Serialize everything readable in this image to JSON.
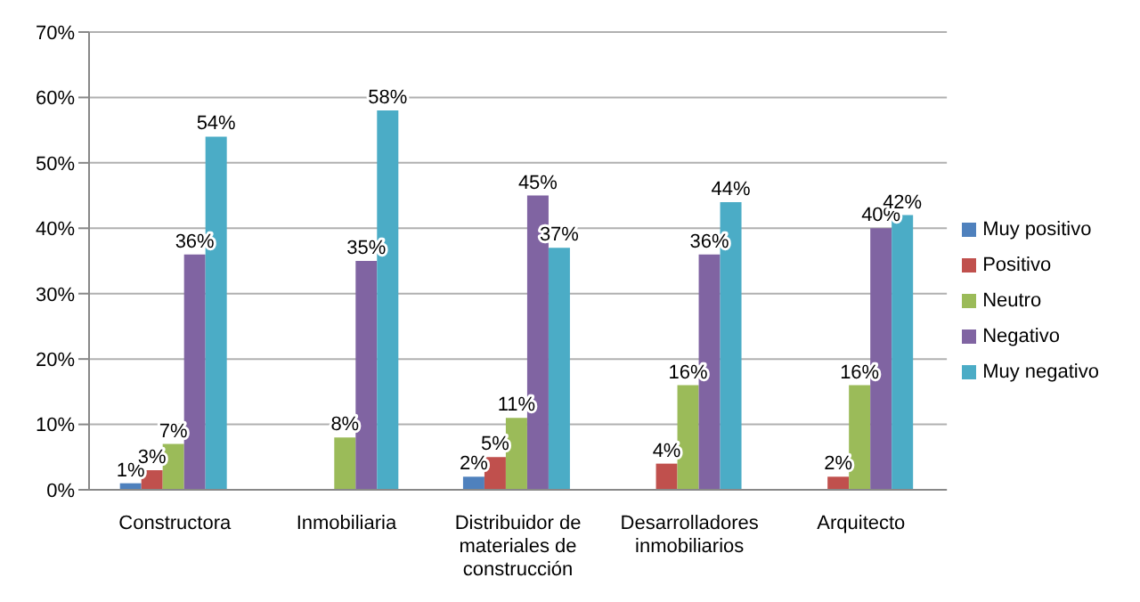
{
  "chart_data": {
    "type": "bar",
    "categories": [
      "Constructora",
      "Inmobiliaria",
      "Distribuidor de materiales de construcción",
      "Desarrolladores inmobiliarios",
      "Arquitecto"
    ],
    "series": [
      {
        "name": "Muy positivo",
        "color": "#4f81bd",
        "values": [
          1,
          null,
          2,
          null,
          null
        ],
        "value_labels": [
          "1%",
          null,
          "2%",
          null,
          null
        ]
      },
      {
        "name": "Positivo",
        "color": "#c0504d",
        "values": [
          3,
          null,
          5,
          4,
          2
        ],
        "value_labels": [
          "3%",
          null,
          "5%",
          "4%",
          "2%"
        ]
      },
      {
        "name": "Neutro",
        "color": "#9bbb59",
        "values": [
          7,
          8,
          11,
          16,
          16
        ],
        "value_labels": [
          "7%",
          "8%",
          "11%",
          "16%",
          "16%"
        ]
      },
      {
        "name": "Negativo",
        "color": "#8064a2",
        "values": [
          36,
          35,
          45,
          36,
          40
        ],
        "value_labels": [
          "36%",
          "35%",
          "45%",
          "36%",
          "40%"
        ]
      },
      {
        "name": "Muy negativo",
        "color": "#4bacc6",
        "values": [
          54,
          58,
          37,
          44,
          42
        ],
        "value_labels": [
          "54%",
          "58%",
          "37%",
          "44%",
          "42%"
        ]
      }
    ],
    "ylim": [
      0,
      70
    ],
    "yticks": [
      {
        "value": 0,
        "label": "0%"
      },
      {
        "value": 10,
        "label": "10%"
      },
      {
        "value": 20,
        "label": "20%"
      },
      {
        "value": 30,
        "label": "30%"
      },
      {
        "value": 40,
        "label": "40%"
      },
      {
        "value": 50,
        "label": "50%"
      },
      {
        "value": 60,
        "label": "60%"
      },
      {
        "value": 70,
        "label": "70%"
      }
    ],
    "grid": "y",
    "legend": "right"
  }
}
